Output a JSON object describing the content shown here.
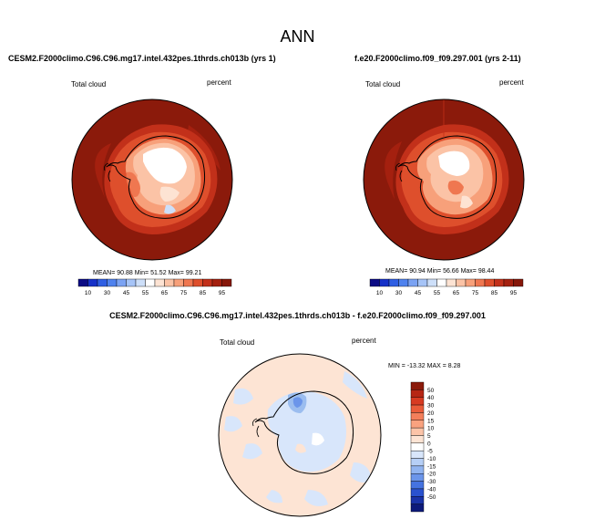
{
  "title": "ANN",
  "colors": {
    "ocean_high": "#8b1a0b",
    "land_edge": "#d9542b",
    "ice_mid": "#f5a988",
    "ice_light": "#fbd7c4",
    "ice_white": "#ffffff",
    "diff_pos": "#fbe3d2",
    "diff_neg": "#d6e6fb",
    "diff_neg_strong": "#9bbdef"
  },
  "chart_data": [
    {
      "type": "heatmap",
      "projection": "south-polar-stereographic",
      "title": "CESM2.F2000climo.C96.C96.mg17.intel.432pes.1thrds.ch013b (yrs 1)",
      "variable": "Total cloud",
      "units": "percent",
      "stats": {
        "mean_label": "MEAN=",
        "mean": "90.88",
        "min_label": "Min=",
        "min": "51.52",
        "max_label": "Max=",
        "max": "99.21"
      },
      "colorbar": {
        "levels": [
          10,
          20,
          30,
          40,
          45,
          50,
          55,
          60,
          65,
          70,
          75,
          80,
          85,
          90,
          95
        ],
        "tick_labels": [
          "10",
          "30",
          "45",
          "55",
          "65",
          "75",
          "85",
          "95"
        ],
        "colors": [
          "#0b0b84",
          "#1631c8",
          "#2f5fe3",
          "#4f82ee",
          "#7ba3f3",
          "#a6c4f7",
          "#cddff9",
          "#ffffff",
          "#fde3d3",
          "#fbc3a6",
          "#f7a07a",
          "#ef7750",
          "#de4f2c",
          "#c2301a",
          "#a4200f",
          "#861709"
        ]
      }
    },
    {
      "type": "heatmap",
      "projection": "south-polar-stereographic",
      "title": "f.e20.F2000climo.f09_f09.297.001 (yrs 2-11)",
      "variable": "Total cloud",
      "units": "percent",
      "stats": {
        "mean_label": "MEAN=",
        "mean": "90.94",
        "min_label": "Min=",
        "min": "56.66",
        "max_label": "Max=",
        "max": "98.44"
      },
      "colorbar": {
        "levels": [
          10,
          20,
          30,
          40,
          45,
          50,
          55,
          60,
          65,
          70,
          75,
          80,
          85,
          90,
          95
        ],
        "tick_labels": [
          "10",
          "30",
          "45",
          "55",
          "65",
          "75",
          "85",
          "95"
        ],
        "colors": [
          "#0b0b84",
          "#1631c8",
          "#2f5fe3",
          "#4f82ee",
          "#7ba3f3",
          "#a6c4f7",
          "#cddff9",
          "#ffffff",
          "#fde3d3",
          "#fbc3a6",
          "#f7a07a",
          "#ef7750",
          "#de4f2c",
          "#c2301a",
          "#a4200f",
          "#861709"
        ]
      }
    },
    {
      "type": "heatmap",
      "projection": "south-polar-stereographic",
      "title": "CESM2.F2000climo.C96.C96.mg17.intel.432pes.1thrds.ch013b - f.e20.F2000climo.f09_f09.297.001",
      "variable": "Total cloud",
      "units": "percent",
      "stats": {
        "min_label": "MIN =",
        "min": "-13.32",
        "max_label": "MAX =",
        "max": "8.28"
      },
      "colorbar": {
        "orientation": "vertical",
        "tick_labels": [
          "50",
          "40",
          "30",
          "20",
          "15",
          "10",
          "5",
          "0",
          "-5",
          "-10",
          "-15",
          "-20",
          "-30",
          "-40",
          "-50"
        ],
        "colors": [
          "#8b1a0b",
          "#b62614",
          "#d73b22",
          "#ea5c3a",
          "#f47f5b",
          "#f9a27f",
          "#fcc4a8",
          "#fde4d4",
          "#ffffff",
          "#d8e6fb",
          "#b6cff6",
          "#91b4f0",
          "#6b95ea",
          "#4573e0",
          "#2a52cf",
          "#1a33a8",
          "#0d1a7a"
        ]
      }
    }
  ]
}
